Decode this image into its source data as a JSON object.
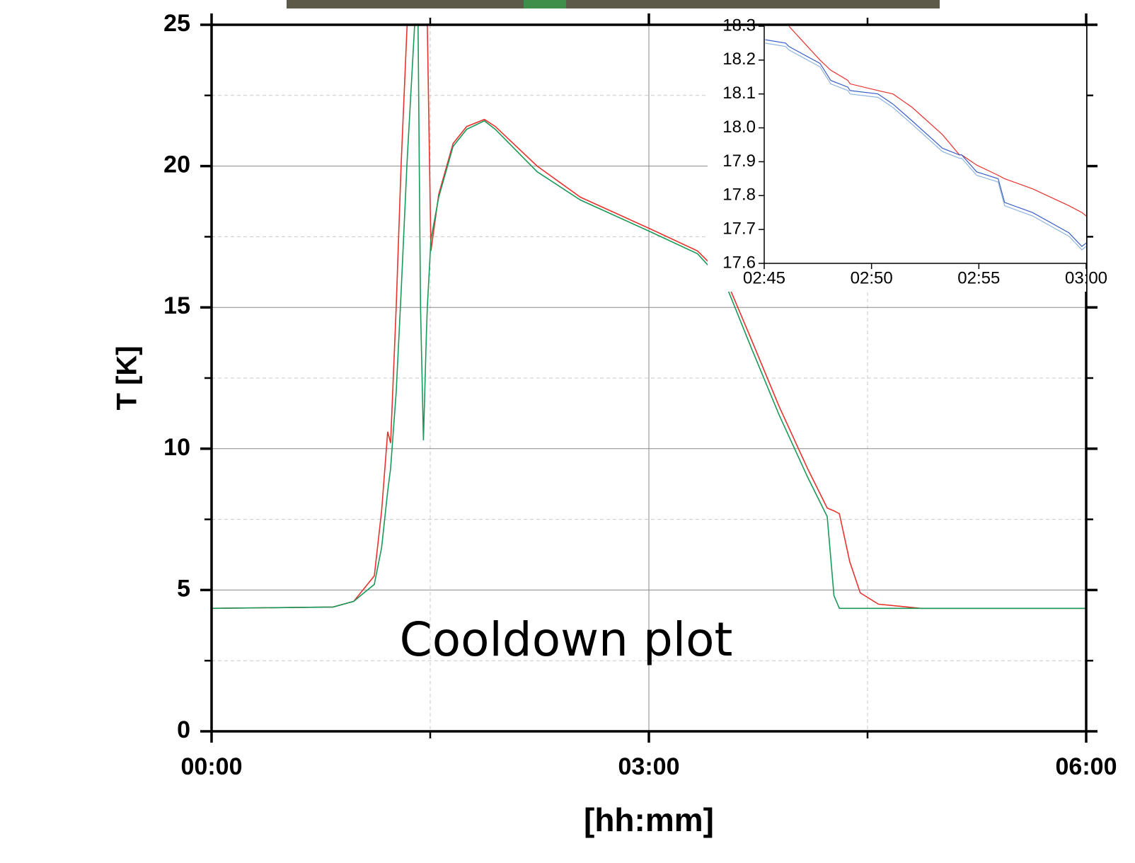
{
  "chart_data": [
    {
      "type": "line",
      "ylabel": "T [K]",
      "xlabel": "[hh:mm]",
      "annotation": "Cooldown plot",
      "x": [
        0,
        50,
        58.5,
        67,
        70,
        72.5,
        73.7,
        76,
        78,
        80.4,
        80.5,
        83.6,
        85,
        86,
        87.2,
        88.4,
        88.8,
        90.3,
        93.5,
        99.4,
        105,
        112.3,
        116.8,
        134,
        151.8,
        180,
        200,
        211.7,
        222,
        233.6,
        245.3,
        253.4,
        256.2,
        258.4,
        262.7,
        267,
        274.5,
        292,
        360
      ],
      "series": [
        {
          "color": "#e8322d",
          "values": [
            4.35,
            4.4,
            4.6,
            5.5,
            7.8,
            10.6,
            10.2,
            15,
            20,
            24.8,
            25,
            null,
            null,
            null,
            null,
            null,
            25,
            17.0,
            19,
            20.8,
            21.4,
            21.65,
            21.4,
            20.0,
            18.9,
            17.8,
            17.0,
            16.0,
            13.9,
            11.5,
            9.3,
            7.9,
            7.8,
            7.7,
            6.0,
            4.9,
            4.5,
            4.35,
            4.35
          ]
        },
        {
          "color": "#1a9a5a",
          "values": [
            4.35,
            4.4,
            4.6,
            5.2,
            6.5,
            8.5,
            9.3,
            12,
            15.5,
            20,
            20.2,
            25,
            25,
            15,
            10.3,
            14,
            15,
            17.4,
            18.9,
            20.7,
            21.3,
            21.6,
            21.3,
            19.8,
            18.8,
            17.7,
            16.9,
            15.8,
            13.6,
            11.2,
            9.0,
            7.6,
            4.8,
            4.35,
            4.35,
            4.35,
            4.35,
            4.35,
            4.35
          ]
        }
      ],
      "xlim": [
        0,
        360
      ],
      "xticks": [
        {
          "value": 0,
          "label": "00:00"
        },
        {
          "value": 180,
          "label": "03:00"
        },
        {
          "value": 360,
          "label": "06:00"
        }
      ],
      "xminor": [
        90,
        270
      ],
      "ylim": [
        0,
        25
      ],
      "yticks": [
        0,
        5,
        10,
        15,
        20,
        25
      ],
      "yminor": [
        2.5,
        7.5,
        12.5,
        17.5,
        22.5
      ],
      "grid": true
    },
    {
      "type": "line",
      "x": [
        165.05,
        166,
        166.15,
        167.6,
        168.1,
        168.9,
        169,
        170.3,
        171,
        171.9,
        173.3,
        174.1,
        174.2,
        174.9,
        175.9,
        176.2,
        177.5,
        179.2,
        179.8,
        180
      ],
      "series": [
        {
          "color": "#e8322d",
          "values": [
            null,
            null,
            18.3,
            18.2,
            18.17,
            18.14,
            18.13,
            18.11,
            18.1,
            18.06,
            17.98,
            17.92,
            17.92,
            17.89,
            17.86,
            17.85,
            17.82,
            17.77,
            17.75,
            17.74
          ]
        },
        {
          "color": "#3a5fc8",
          "values": [
            18.26,
            18.25,
            18.24,
            18.19,
            18.14,
            18.12,
            18.11,
            18.1,
            18.07,
            18.02,
            17.94,
            17.92,
            17.92,
            17.87,
            17.85,
            17.78,
            17.75,
            17.69,
            17.65,
            17.66
          ]
        },
        {
          "color": "#8fb4e0",
          "values": [
            18.25,
            18.24,
            18.23,
            18.18,
            18.13,
            18.11,
            18.1,
            18.09,
            18.06,
            18.01,
            17.93,
            17.91,
            17.91,
            17.86,
            17.84,
            17.77,
            17.74,
            17.68,
            17.64,
            17.65
          ]
        }
      ],
      "xlim": [
        165,
        180
      ],
      "xticks": [
        {
          "value": 165,
          "label": "02:45"
        },
        {
          "value": 170,
          "label": "02:50"
        },
        {
          "value": 175,
          "label": "02:55"
        },
        {
          "value": 180,
          "label": "03:00"
        }
      ],
      "ylim": [
        17.6,
        18.3
      ],
      "yticks": [
        17.6,
        17.7,
        17.8,
        17.9,
        {
          "value": 18.0,
          "label": "18.0"
        },
        18.1,
        18.2,
        18.3
      ],
      "grid": false
    }
  ]
}
